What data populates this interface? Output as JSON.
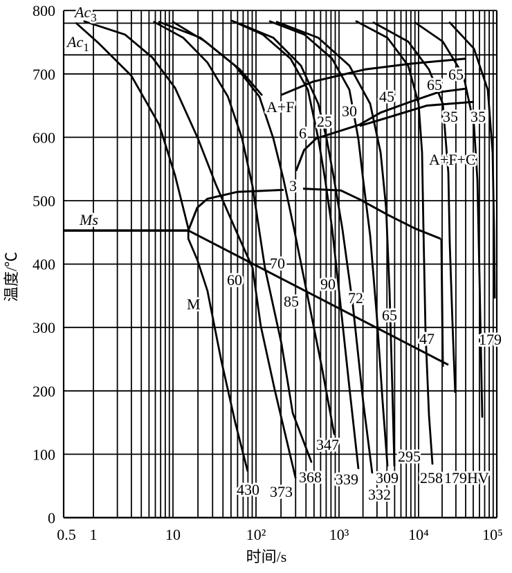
{
  "chart_data": {
    "type": "line",
    "title": "",
    "xlabel": "时间/s",
    "ylabel": "温度/℃",
    "x_scale": "log",
    "xlim": [
      0.5,
      100000
    ],
    "ylim": [
      0,
      800
    ],
    "grid": true,
    "x_ticks": [
      0.5,
      1,
      10,
      100,
      1000,
      10000,
      100000
    ],
    "x_tick_labels": [
      "0.5",
      "1",
      "10",
      "10²",
      "10³",
      "10⁴",
      "10⁵"
    ],
    "y_ticks": [
      0,
      100,
      200,
      300,
      400,
      500,
      600,
      700,
      800
    ],
    "y_tick_labels": [
      "0",
      "100",
      "200",
      "300",
      "400",
      "500",
      "600",
      "700",
      "800"
    ],
    "reference_lines": [
      {
        "name": "Ac3",
        "T": 780
      },
      {
        "name": "Ac1",
        "T": 730
      }
    ],
    "transformation_lines": [
      {
        "id": "ms",
        "points": [
          [
            0.5,
            453
          ],
          [
            15.3,
            453
          ]
        ]
      },
      {
        "id": "bainite-start-a",
        "points": [
          [
            15.3,
            453
          ],
          [
            19.6,
            489
          ],
          [
            26,
            503
          ],
          [
            60,
            514
          ],
          [
            215,
            517
          ]
        ]
      },
      {
        "id": "bainite-start-b",
        "points": [
          [
            369,
            519
          ],
          [
            1060,
            516
          ],
          [
            1820,
            502
          ],
          [
            4060,
            478
          ],
          [
            9060,
            456
          ],
          [
            19200,
            440
          ]
        ]
      },
      {
        "id": "bainite-finish",
        "points": [
          [
            15.3,
            453
          ],
          [
            24000,
            241
          ]
        ]
      },
      {
        "id": "bainite-end-vertical",
        "points": [
          [
            19600,
            440
          ],
          [
            20400,
            238
          ]
        ]
      },
      {
        "id": "ferrite-start",
        "points": [
          [
            203,
            667
          ],
          [
            492,
            688
          ],
          [
            2100,
            707
          ],
          [
            7870,
            716
          ],
          [
            40000,
            724
          ]
        ]
      },
      {
        "id": "pearlite-start",
        "points": [
          [
            304,
            547
          ],
          [
            380,
            580
          ],
          [
            531,
            598
          ],
          [
            1820,
            620
          ],
          [
            3330,
            639
          ],
          [
            7870,
            656
          ],
          [
            17700,
            671
          ],
          [
            41600,
            677
          ]
        ]
      },
      {
        "id": "pearlite-line-2",
        "points": [
          [
            1820,
            618
          ],
          [
            4060,
            631
          ],
          [
            12770,
            650
          ],
          [
            51000,
            656
          ]
        ]
      }
    ],
    "cooling_curves": [
      {
        "hardness": "430",
        "points": [
          [
            0.67,
            780
          ],
          [
            1.15,
            749
          ],
          [
            3.0,
            697
          ],
          [
            6.7,
            620
          ],
          [
            10.6,
            540
          ],
          [
            15.3,
            456
          ],
          [
            15.3,
            440
          ],
          [
            19.6,
            407
          ],
          [
            26,
            358
          ],
          [
            38,
            249
          ],
          [
            56,
            151
          ],
          [
            79,
            74
          ]
        ]
      },
      {
        "hardness": "373",
        "points": [
          [
            0.81,
            783
          ],
          [
            2.5,
            762
          ],
          [
            5.5,
            726
          ],
          [
            10.6,
            678
          ],
          [
            20,
            598
          ],
          [
            33,
            525
          ],
          [
            56,
            456
          ],
          [
            91,
            394
          ],
          [
            114,
            303
          ],
          [
            168,
            202
          ],
          [
            299,
            63
          ]
        ]
      },
      {
        "hardness": "368",
        "points": [
          [
            5.8,
            782
          ],
          [
            13.3,
            757
          ],
          [
            26,
            718
          ],
          [
            46,
            664
          ],
          [
            68,
            598
          ],
          [
            91,
            522
          ],
          [
            128,
            394
          ],
          [
            203,
            274
          ],
          [
            277,
            165
          ],
          [
            464,
            88
          ]
        ]
      },
      {
        "hardness": "347",
        "points": [
          [
            6.7,
            782
          ],
          [
            21.5,
            757
          ],
          [
            56,
            713
          ],
          [
            110,
            664
          ],
          [
            162,
            598
          ],
          [
            215,
            533
          ],
          [
            287,
            456
          ],
          [
            422,
            347
          ],
          [
            619,
            238
          ],
          [
            875,
            132
          ]
        ]
      },
      {
        "hardness": "",
        "points": [
          [
            10,
            782
          ],
          [
            24.6,
            751
          ],
          [
            64,
            707
          ],
          [
            117,
            667
          ]
        ]
      },
      {
        "hardness": "339",
        "points": [
          [
            51,
            784
          ],
          [
            121,
            762
          ],
          [
            261,
            724
          ],
          [
            422,
            675
          ],
          [
            562,
            598
          ],
          [
            681,
            533
          ],
          [
            826,
            456
          ],
          [
            1000,
            358
          ],
          [
            1350,
            205
          ],
          [
            1750,
            78
          ]
        ]
      },
      {
        "hardness": "332",
        "points": [
          [
            56,
            782
          ],
          [
            162,
            757
          ],
          [
            348,
            713
          ],
          [
            562,
            653
          ],
          [
            708,
            598
          ],
          [
            875,
            533
          ],
          [
            1100,
            456
          ],
          [
            1490,
            336
          ],
          [
            2010,
            183
          ],
          [
            2610,
            71
          ]
        ]
      },
      {
        "hardness": "309",
        "points": [
          [
            147,
            783
          ],
          [
            383,
            762
          ],
          [
            826,
            724
          ],
          [
            1350,
            675
          ],
          [
            1750,
            598
          ],
          [
            2010,
            533
          ],
          [
            2460,
            445
          ],
          [
            3000,
            314
          ],
          [
            3530,
            183
          ],
          [
            4060,
            82
          ]
        ]
      },
      {
        "hardness": "295",
        "points": [
          [
            178,
            782
          ],
          [
            562,
            757
          ],
          [
            1350,
            713
          ],
          [
            2460,
            653
          ],
          [
            3330,
            576
          ],
          [
            3900,
            489
          ],
          [
            4310,
            358
          ],
          [
            4670,
            205
          ],
          [
            4960,
            82
          ]
        ]
      },
      {
        "hardness": "258",
        "points": [
          [
            1650,
            783
          ],
          [
            4060,
            757
          ],
          [
            7400,
            713
          ],
          [
            10000,
            653
          ],
          [
            11070,
            576
          ],
          [
            11540,
            456
          ],
          [
            12250,
            293
          ],
          [
            13580,
            162
          ],
          [
            15030,
            85
          ]
        ]
      },
      {
        "hardness": "",
        "points": [
          [
            2720,
            781
          ],
          [
            7400,
            751
          ],
          [
            13580,
            707
          ],
          [
            20400,
            653
          ],
          [
            24000,
            544
          ],
          [
            25000,
            434
          ],
          [
            27200,
            303
          ],
          [
            29400,
            198
          ]
        ]
      },
      {
        "hardness": "179HV",
        "points": [
          [
            9060,
            781
          ],
          [
            20400,
            751
          ],
          [
            37600,
            697
          ],
          [
            51000,
            620
          ],
          [
            56500,
            533
          ],
          [
            60100,
            380
          ],
          [
            62600,
            271
          ],
          [
            65200,
            159
          ]
        ]
      },
      {
        "hardness": "179",
        "points": [
          [
            25000,
            781
          ],
          [
            51000,
            740
          ],
          [
            76700,
            675
          ],
          [
            88500,
            576
          ],
          [
            92200,
            456
          ],
          [
            94000,
            347
          ]
        ]
      }
    ],
    "annotations": [
      {
        "text": "Ac",
        "sub": "3",
        "italic": true
      },
      {
        "text": "Ac",
        "sub": "1",
        "italic": true
      },
      {
        "text": "Ms",
        "italic": true
      },
      {
        "text": "M"
      },
      {
        "text": "A+F"
      },
      {
        "text": "6"
      },
      {
        "text": "25"
      },
      {
        "text": "30"
      },
      {
        "text": "45"
      },
      {
        "text": "65"
      },
      {
        "text": "65"
      },
      {
        "text": "35"
      },
      {
        "text": "35"
      },
      {
        "text": "A+F+C"
      },
      {
        "text": "3"
      },
      {
        "text": "70"
      },
      {
        "text": "60"
      },
      {
        "text": "85"
      },
      {
        "text": "90"
      },
      {
        "text": "72"
      },
      {
        "text": "65"
      },
      {
        "text": "47"
      },
      {
        "text": "179"
      },
      {
        "text": "347"
      },
      {
        "text": "430"
      },
      {
        "text": "373"
      },
      {
        "text": "368"
      },
      {
        "text": "339"
      },
      {
        "text": "332"
      },
      {
        "text": "309"
      },
      {
        "text": "295"
      },
      {
        "text": "258"
      },
      {
        "text": "179HV"
      }
    ]
  }
}
